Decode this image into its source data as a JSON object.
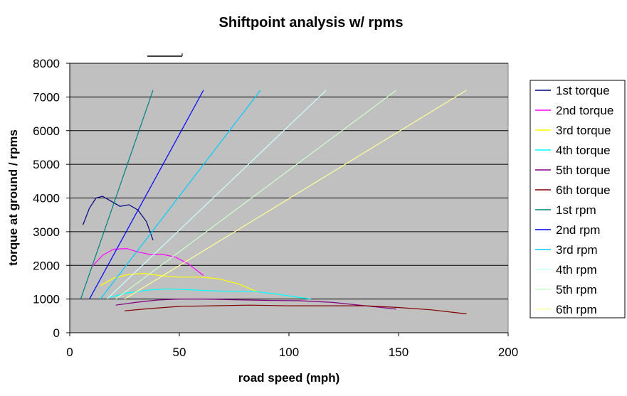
{
  "chart_data": {
    "type": "line",
    "title": "Shiftpoint analysis w/ rpms",
    "xlabel": "road speed (mph)",
    "ylabel": "torque at ground / rpms",
    "xlim": [
      0,
      200
    ],
    "ylim": [
      0,
      8000
    ],
    "xticks": [
      "0",
      "50",
      "100",
      "150",
      "200"
    ],
    "yticks": [
      "0",
      "1000",
      "2000",
      "3000",
      "4000",
      "5000",
      "6000",
      "7000",
      "8000"
    ],
    "grid": "horizontal",
    "plot_background": "#c0c0c0",
    "legend_position": "right",
    "series": [
      {
        "name": "1st torque",
        "color": "#000080",
        "points": [
          [
            6,
            3200
          ],
          [
            9,
            3700
          ],
          [
            12,
            4000
          ],
          [
            15,
            4050
          ],
          [
            19,
            3900
          ],
          [
            23,
            3750
          ],
          [
            27,
            3800
          ],
          [
            31,
            3650
          ],
          [
            35,
            3300
          ],
          [
            38,
            2750
          ]
        ]
      },
      {
        "name": "2nd torque",
        "color": "#ff00ff",
        "points": [
          [
            10,
            1950
          ],
          [
            15,
            2300
          ],
          [
            20,
            2480
          ],
          [
            26,
            2500
          ],
          [
            31,
            2400
          ],
          [
            36,
            2330
          ],
          [
            42,
            2330
          ],
          [
            48,
            2250
          ],
          [
            54,
            2050
          ],
          [
            61,
            1700
          ]
        ]
      },
      {
        "name": "3rd torque",
        "color": "#ffff00",
        "points": [
          [
            14,
            1400
          ],
          [
            20,
            1620
          ],
          [
            27,
            1730
          ],
          [
            34,
            1760
          ],
          [
            41,
            1700
          ],
          [
            50,
            1650
          ],
          [
            60,
            1650
          ],
          [
            68,
            1600
          ],
          [
            77,
            1450
          ],
          [
            86,
            1200
          ]
        ]
      },
      {
        "name": "4th torque",
        "color": "#00ffff",
        "points": [
          [
            18,
            1050
          ],
          [
            26,
            1180
          ],
          [
            35,
            1260
          ],
          [
            44,
            1300
          ],
          [
            53,
            1280
          ],
          [
            63,
            1250
          ],
          [
            73,
            1230
          ],
          [
            83,
            1230
          ],
          [
            93,
            1160
          ],
          [
            110,
            1000
          ]
        ]
      },
      {
        "name": "5th torque",
        "color": "#800080",
        "points": [
          [
            21,
            820
          ],
          [
            30,
            900
          ],
          [
            40,
            970
          ],
          [
            50,
            1000
          ],
          [
            62,
            1000
          ],
          [
            75,
            980
          ],
          [
            90,
            960
          ],
          [
            105,
            950
          ],
          [
            120,
            900
          ],
          [
            135,
            800
          ],
          [
            149,
            700
          ]
        ]
      },
      {
        "name": "6th torque",
        "color": "#800000",
        "points": [
          [
            25,
            650
          ],
          [
            37,
            720
          ],
          [
            50,
            780
          ],
          [
            65,
            800
          ],
          [
            82,
            820
          ],
          [
            100,
            800
          ],
          [
            117,
            800
          ],
          [
            135,
            800
          ],
          [
            150,
            750
          ],
          [
            165,
            680
          ],
          [
            181,
            560
          ]
        ]
      },
      {
        "name": "1st rpm",
        "color": "#008080",
        "points": [
          [
            5,
            1000
          ],
          [
            38,
            7200
          ]
        ]
      },
      {
        "name": "2nd rpm",
        "color": "#0000ff",
        "points": [
          [
            9,
            1000
          ],
          [
            61,
            7200
          ]
        ]
      },
      {
        "name": "3rd rpm",
        "color": "#00ccff",
        "points": [
          [
            14,
            1000
          ],
          [
            87,
            7200
          ]
        ]
      },
      {
        "name": "4th rpm",
        "color": "#ccffff",
        "points": [
          [
            17,
            1000
          ],
          [
            117,
            7200
          ]
        ]
      },
      {
        "name": "5th rpm",
        "color": "#ccffcc",
        "points": [
          [
            21,
            1000
          ],
          [
            149,
            7200
          ]
        ]
      },
      {
        "name": "6th rpm",
        "color": "#ffff99",
        "points": [
          [
            25,
            1000
          ],
          [
            181,
            7200
          ]
        ]
      }
    ]
  }
}
